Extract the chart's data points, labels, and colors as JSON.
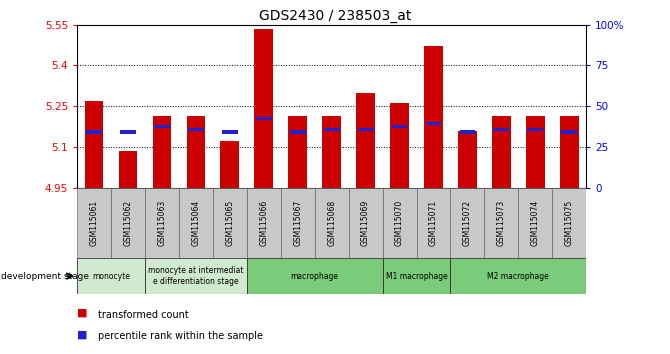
{
  "title": "GDS2430 / 238503_at",
  "samples": [
    "GSM115061",
    "GSM115062",
    "GSM115063",
    "GSM115064",
    "GSM115065",
    "GSM115066",
    "GSM115067",
    "GSM115068",
    "GSM115069",
    "GSM115070",
    "GSM115071",
    "GSM115072",
    "GSM115073",
    "GSM115074",
    "GSM115075"
  ],
  "red_values": [
    5.27,
    5.085,
    5.215,
    5.215,
    5.12,
    5.535,
    5.215,
    5.215,
    5.3,
    5.26,
    5.47,
    5.16,
    5.215,
    5.215,
    5.215
  ],
  "blue_values": [
    5.155,
    5.155,
    5.175,
    5.165,
    5.155,
    5.205,
    5.155,
    5.165,
    5.165,
    5.175,
    5.185,
    5.155,
    5.165,
    5.165,
    5.155
  ],
  "blue_outside": [
    false,
    true,
    false,
    false,
    true,
    false,
    false,
    false,
    false,
    false,
    false,
    false,
    false,
    false,
    false
  ],
  "blue_outside_vals": [
    0,
    5.155,
    0,
    0,
    5.155,
    0,
    0,
    0,
    0,
    0,
    0,
    0,
    0,
    0,
    0
  ],
  "y_min": 4.95,
  "y_max": 5.55,
  "y_ticks_left": [
    4.95,
    5.1,
    5.25,
    5.4,
    5.55
  ],
  "y_ticks_right_pct": [
    0,
    25,
    50,
    75,
    100
  ],
  "right_labels": [
    "0",
    "25",
    "50",
    "75",
    "100%"
  ],
  "bar_bottom": 4.95,
  "red_color": "#cc0000",
  "blue_color": "#2222cc",
  "group_defs": [
    {
      "start": 0,
      "end": 2,
      "label": "monocyte",
      "color": "#c8e6c9"
    },
    {
      "start": 2,
      "end": 5,
      "label": "monocyte at intermediat\ne differentiation stage",
      "color": "#c8e6c9"
    },
    {
      "start": 5,
      "end": 9,
      "label": "macrophage",
      "color": "#66bb6a"
    },
    {
      "start": 9,
      "end": 11,
      "label": "M1 macrophage",
      "color": "#66bb6a"
    },
    {
      "start": 11,
      "end": 15,
      "label": "M2 macrophage",
      "color": "#66bb6a"
    }
  ],
  "sample_bg": "#c8c8c8",
  "dev_stage_label": "development stage",
  "legend_red": "transformed count",
  "legend_blue": "percentile rank within the sample",
  "bar_width": 0.55,
  "bg_color": "#ffffff"
}
